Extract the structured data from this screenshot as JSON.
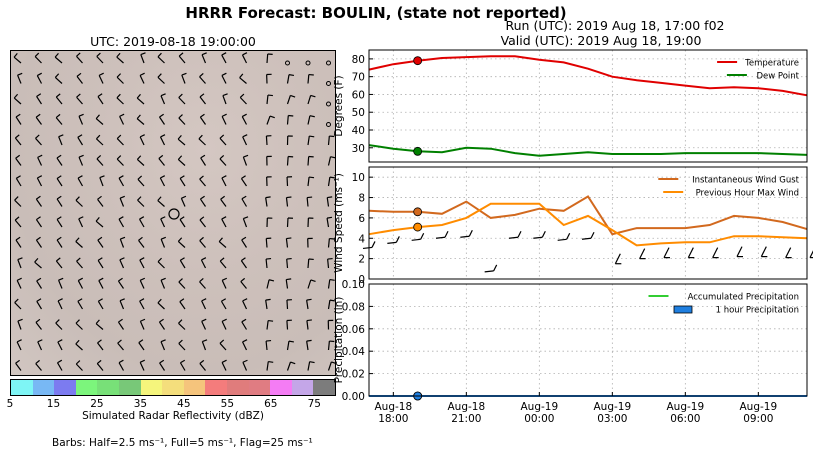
{
  "header": {
    "title": "HRRR Forecast: BOULIN, (state not reported)",
    "run": "Run (UTC): 2019 Aug 18, 17:00 f02",
    "valid": "Valid (UTC): 2019 Aug 18, 19:00"
  },
  "map": {
    "title": "UTC: 2019-08-18 19:00:00",
    "colorbar_label": "Simulated Radar Reflectivity (dBZ)",
    "colorbar_ticks": [
      "5",
      "15",
      "25",
      "35",
      "45",
      "55",
      "65",
      "75"
    ],
    "colorbar_colors": [
      "#7ef5f5",
      "#78b8f4",
      "#7c7bf0",
      "#7cf57c",
      "#78e078",
      "#78c878",
      "#f5f57c",
      "#f4de7c",
      "#f5c47c",
      "#f47c7c",
      "#e07c7c",
      "#e07c82",
      "#f47cf4",
      "#c4a6e8",
      "#7c7c7c"
    ],
    "barbs_note": "Barbs: Half=2.5 ms⁻¹, Full=5 ms⁻¹, Flag=25 ms⁻¹"
  },
  "chart_data": [
    {
      "type": "line",
      "ylabel": "Degrees (F)",
      "ylim": [
        22,
        85
      ],
      "yticks": [
        30,
        40,
        50,
        60,
        70,
        80
      ],
      "grid": true,
      "legend": "top-right",
      "x": [
        "2019-08-18 17:00",
        "2019-08-18 18:00",
        "2019-08-18 19:00",
        "2019-08-18 20:00",
        "2019-08-18 21:00",
        "2019-08-18 22:00",
        "2019-08-18 23:00",
        "2019-08-19 00:00",
        "2019-08-19 01:00",
        "2019-08-19 02:00",
        "2019-08-19 03:00",
        "2019-08-19 04:00",
        "2019-08-19 05:00",
        "2019-08-19 06:00",
        "2019-08-19 07:00",
        "2019-08-19 08:00",
        "2019-08-19 09:00",
        "2019-08-19 10:00",
        "2019-08-19 11:00"
      ],
      "series": [
        {
          "name": "Temperature",
          "color": "#e00000",
          "values": [
            74,
            77,
            79,
            80.5,
            81,
            81.5,
            81.5,
            79.5,
            78,
            74.5,
            70,
            68,
            66.5,
            65,
            63.5,
            64,
            63.5,
            62,
            59.5
          ]
        },
        {
          "name": "Dew Point",
          "color": "#008000",
          "values": [
            31.5,
            29.5,
            28,
            27.5,
            30,
            29.5,
            27,
            25.5,
            26.5,
            27.5,
            26.5,
            26.5,
            26.5,
            27,
            27,
            27,
            27,
            26.5,
            26
          ]
        }
      ],
      "marker_index": 2
    },
    {
      "type": "line",
      "ylabel": "Wind Speed (ms⁻¹)",
      "ylim": [
        0,
        11
      ],
      "yticks": [
        0,
        2,
        4,
        6,
        8,
        10
      ],
      "grid": true,
      "legend": "top-right",
      "series": [
        {
          "name": "Instantaneous Wind Gust",
          "color": "#d2691e",
          "values": [
            6.7,
            6.6,
            6.6,
            6.4,
            7.6,
            6.0,
            6.3,
            6.9,
            6.7,
            8.1,
            4.4,
            5.0,
            5.0,
            5.0,
            5.3,
            6.2,
            6.0,
            5.6,
            4.9
          ]
        },
        {
          "name": "Previous Hour Max Wind",
          "color": "#ff8c00",
          "values": [
            4.4,
            4.8,
            5.1,
            5.3,
            6.0,
            7.4,
            7.4,
            7.4,
            5.3,
            6.2,
            4.8,
            3.3,
            3.5,
            3.6,
            3.6,
            4.2,
            4.2,
            4.1,
            4.0
          ]
        }
      ],
      "marker_index": 2
    },
    {
      "type": "line",
      "ylabel": "Precipitation (in)",
      "ylim": [
        0,
        0.1
      ],
      "yticks": [
        "0.00",
        "0.02",
        "0.04",
        "0.06",
        "0.08",
        "0.10"
      ],
      "grid": true,
      "legend": "top-right",
      "series": [
        {
          "name": "Accumulated Precipitation",
          "color": "#32cd32",
          "values": [
            0,
            0,
            0,
            0,
            0,
            0,
            0,
            0,
            0,
            0,
            0,
            0,
            0,
            0,
            0,
            0,
            0,
            0,
            0
          ]
        },
        {
          "name": "1 hour Precipitation",
          "color": "#1f7fe0",
          "values": [
            0,
            0,
            0,
            0,
            0,
            0,
            0,
            0,
            0,
            0,
            0,
            0,
            0,
            0,
            0,
            0,
            0,
            0,
            0
          ]
        }
      ],
      "marker_index": 2,
      "xticks": [
        {
          "index": 1,
          "label": "Aug-18\n18:00"
        },
        {
          "index": 4,
          "label": "Aug-18\n21:00"
        },
        {
          "index": 7,
          "label": "Aug-19\n00:00"
        },
        {
          "index": 10,
          "label": "Aug-19\n03:00"
        },
        {
          "index": 13,
          "label": "Aug-19\n06:00"
        },
        {
          "index": 16,
          "label": "Aug-19\n09:00"
        }
      ]
    }
  ]
}
